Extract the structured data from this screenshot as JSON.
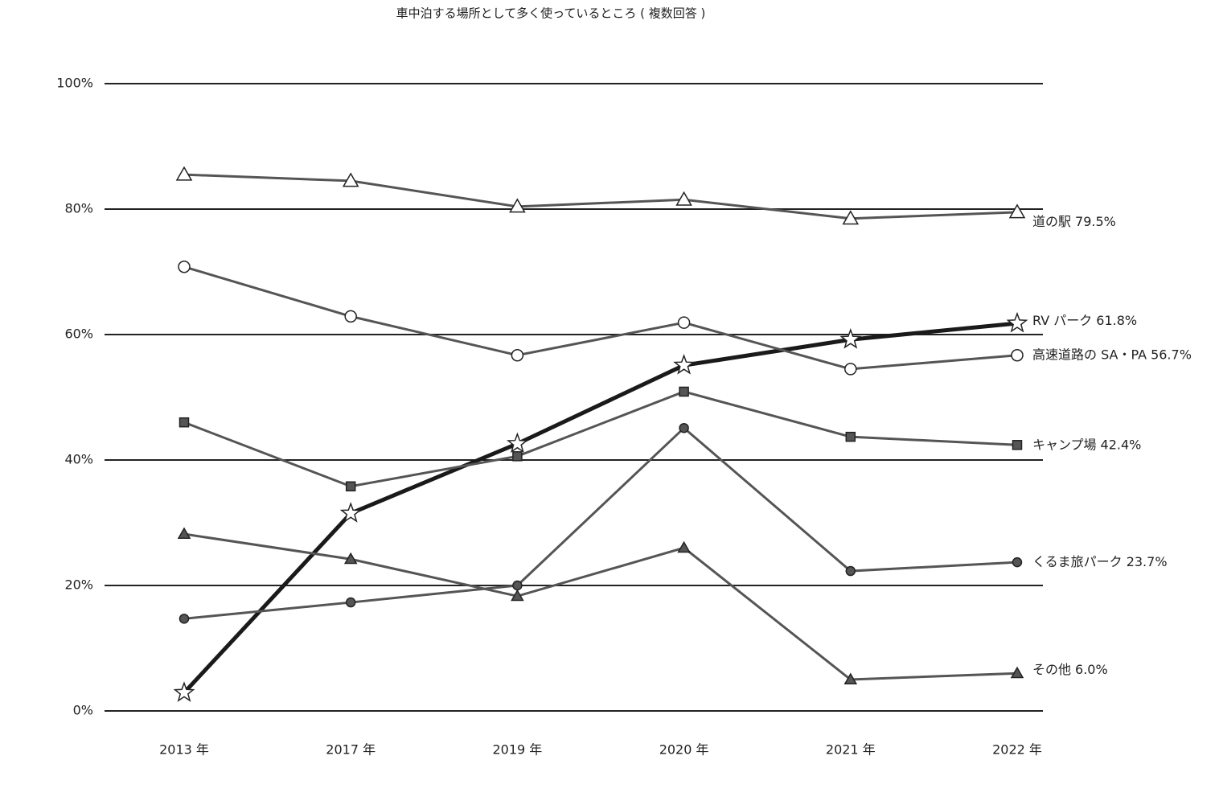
{
  "chart_data": {
    "type": "line",
    "title": "車中泊する場所として多く使っているところ ( 複数回答 )",
    "categories": [
      "2013 年",
      "2017 年",
      "2019 年",
      "2020 年",
      "2021 年",
      "2022 年"
    ],
    "ylim": [
      0,
      100
    ],
    "yticks": [
      {
        "value": 0,
        "label": "0%"
      },
      {
        "value": 20,
        "label": "20%"
      },
      {
        "value": 40,
        "label": "40%"
      },
      {
        "value": 60,
        "label": "60%"
      },
      {
        "value": 80,
        "label": "80%"
      },
      {
        "value": 100,
        "label": "100%"
      }
    ],
    "grid": true,
    "series": [
      {
        "name": "道の駅",
        "end_label": "79.5%",
        "color": "#555",
        "width": 3,
        "marker": "triangle-open",
        "values": [
          85.5,
          84.5,
          80.4,
          81.5,
          78.5,
          79.5
        ]
      },
      {
        "name": "RV パーク",
        "end_label": "61.8%",
        "color": "#1a1a1a",
        "width": 5,
        "marker": "star-open",
        "values": [
          2.9,
          31.5,
          42.6,
          55.1,
          59.2,
          61.8
        ]
      },
      {
        "name": "高速道路の SA・PA",
        "end_label": "56.7%",
        "color": "#555",
        "width": 3,
        "marker": "circle-open",
        "values": [
          70.8,
          62.9,
          56.7,
          61.9,
          54.5,
          56.7
        ]
      },
      {
        "name": "キャンプ場",
        "end_label": "42.4%",
        "color": "#555",
        "width": 3,
        "marker": "square",
        "values": [
          46.0,
          35.8,
          40.6,
          50.9,
          43.7,
          42.4
        ]
      },
      {
        "name": "くるま旅パーク",
        "end_label": "23.7%",
        "color": "#555",
        "width": 3,
        "marker": "circle",
        "values": [
          14.7,
          17.3,
          20.0,
          45.1,
          22.3,
          23.7
        ]
      },
      {
        "name": "その他",
        "end_label": "6.0%",
        "color": "#555",
        "width": 3,
        "marker": "triangle",
        "values": [
          28.2,
          24.2,
          18.3,
          26.0,
          5.0,
          6.0
        ]
      }
    ]
  }
}
